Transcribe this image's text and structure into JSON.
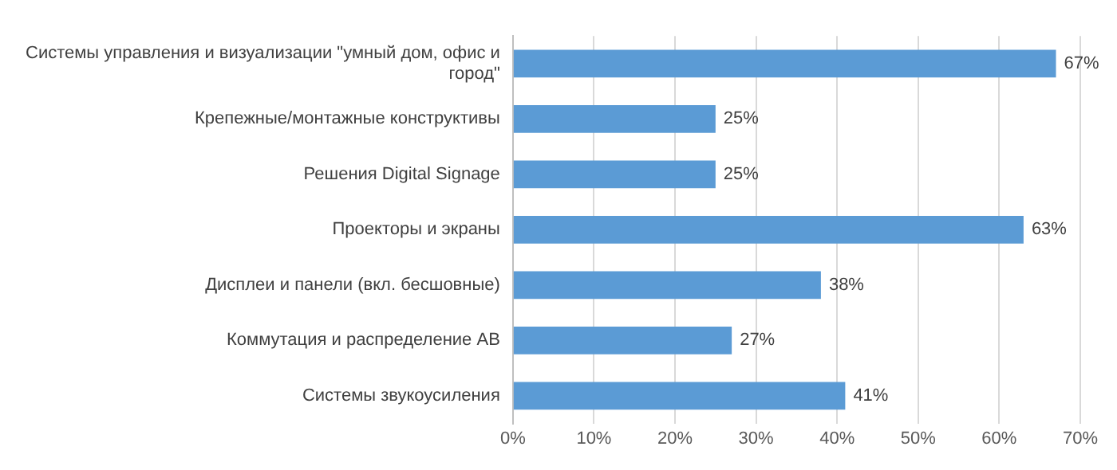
{
  "chart_data": {
    "type": "bar",
    "orientation": "horizontal",
    "categories": [
      "Системы управления и визуализации \"умный дом, офис и город\"",
      "Крепежные/монтажные конструктивы",
      "Решения Digital Signage",
      "Проекторы и экраны",
      "Дисплеи и панели (вкл. бесшовные)",
      "Коммутация и распределение АВ",
      "Системы звукоусиления"
    ],
    "values": [
      67,
      25,
      25,
      63,
      38,
      27,
      41
    ],
    "value_labels": [
      "67%",
      "25%",
      "25%",
      "63%",
      "38%",
      "27%",
      "41%"
    ],
    "color": "#5b9bd5",
    "xlim": [
      0,
      70
    ],
    "xticks": [
      {
        "value": 0,
        "label": "0%"
      },
      {
        "value": 10,
        "label": "10%"
      },
      {
        "value": 20,
        "label": "20%"
      },
      {
        "value": 30,
        "label": "30%"
      },
      {
        "value": 40,
        "label": "40%"
      },
      {
        "value": 50,
        "label": "50%"
      },
      {
        "value": 60,
        "label": "60%"
      },
      {
        "value": 70,
        "label": "70%"
      }
    ],
    "grid": "x",
    "legend": false
  }
}
